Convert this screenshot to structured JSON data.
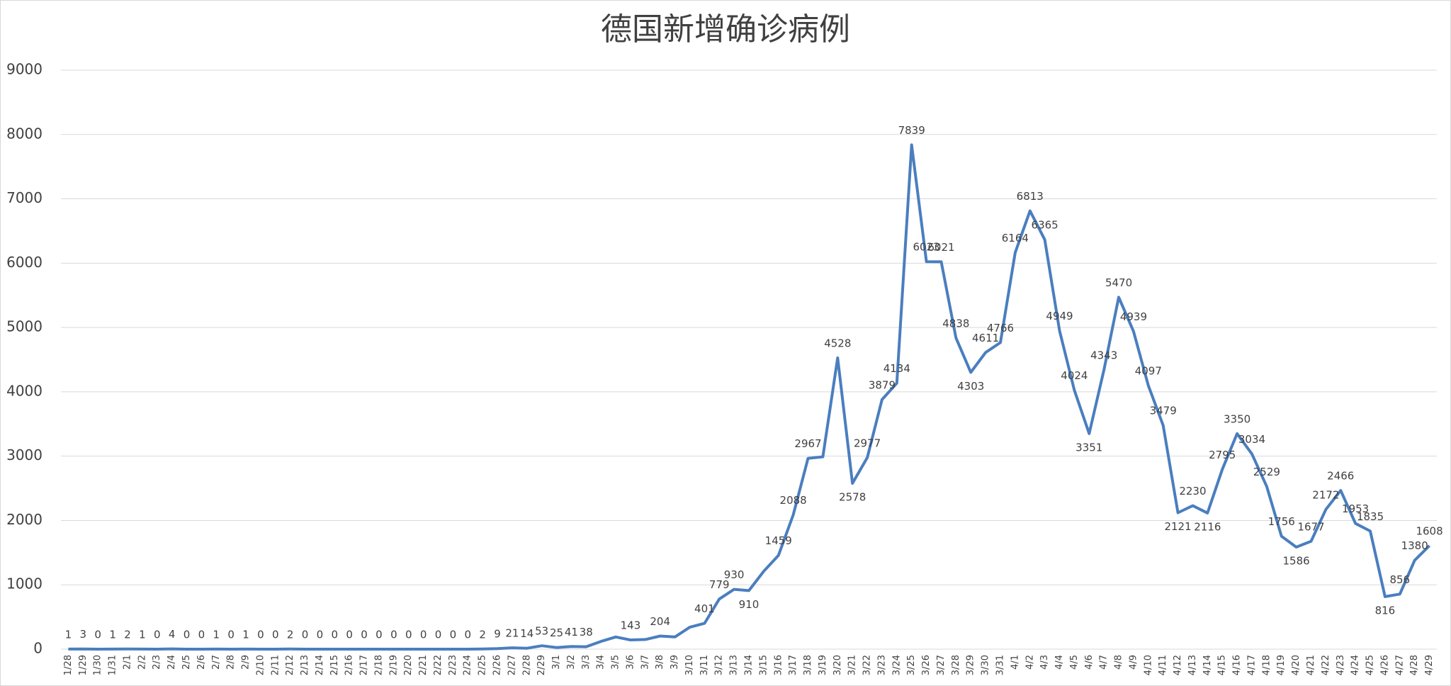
{
  "chart_data": {
    "type": "line",
    "title": "德国新增确诊病例",
    "categories": [
      "1/28",
      "1/29",
      "1/30",
      "1/31",
      "2/1",
      "2/2",
      "2/3",
      "2/4",
      "2/5",
      "2/6",
      "2/7",
      "2/8",
      "2/9",
      "2/10",
      "2/11",
      "2/12",
      "2/13",
      "2/14",
      "2/15",
      "2/16",
      "2/17",
      "2/18",
      "2/19",
      "2/20",
      "2/21",
      "2/22",
      "2/23",
      "2/24",
      "2/25",
      "2/26",
      "2/27",
      "2/28",
      "2/29",
      "3/1",
      "3/2",
      "3/3",
      "3/4",
      "3/5",
      "3/6",
      "3/7",
      "3/8",
      "3/9",
      "3/10",
      "3/11",
      "3/12",
      "3/13",
      "3/14",
      "3/15",
      "3/16",
      "3/17",
      "3/18",
      "3/19",
      "3/20",
      "3/21",
      "3/22",
      "3/23",
      "3/24",
      "3/25",
      "3/26",
      "3/27",
      "3/28",
      "3/29",
      "3/30",
      "3/31",
      "4/1",
      "4/2",
      "4/3",
      "4/4",
      "4/5",
      "4/6",
      "4/7",
      "4/8",
      "4/9",
      "4/10",
      "4/11",
      "4/12",
      "4/13",
      "4/14",
      "4/15",
      "4/16",
      "4/17",
      "4/18",
      "4/19",
      "4/20",
      "4/21",
      "4/22",
      "4/23",
      "4/24",
      "4/25",
      "4/26",
      "4/27",
      "4/28",
      "4/29"
    ],
    "values": [
      1,
      3,
      0,
      1,
      2,
      1,
      0,
      4,
      0,
      0,
      1,
      0,
      1,
      0,
      0,
      2,
      0,
      0,
      0,
      0,
      0,
      0,
      0,
      0,
      0,
      0,
      0,
      0,
      2,
      9,
      21,
      14,
      53,
      25,
      41,
      38,
      120,
      190,
      143,
      150,
      204,
      190,
      340,
      401,
      779,
      930,
      910,
      1210,
      1459,
      2088,
      2967,
      2990,
      4528,
      2578,
      2977,
      3879,
      4134,
      7839,
      6023,
      6021,
      4838,
      4303,
      4611,
      4766,
      6164,
      6813,
      6365,
      4949,
      4024,
      3351,
      4343,
      5470,
      4939,
      4097,
      3479,
      2121,
      2230,
      2116,
      2795,
      3350,
      3034,
      2529,
      1756,
      1586,
      1677,
      2172,
      2466,
      1953,
      1835,
      816,
      856,
      1380,
      1608
    ],
    "value_labels": [
      "1",
      "3",
      "0",
      "1",
      "2",
      "1",
      "0",
      "4",
      "0",
      "0",
      "1",
      "0",
      "1",
      "0",
      "0",
      "2",
      "0",
      "0",
      "0",
      "0",
      "0",
      "0",
      "0",
      "0",
      "0",
      "0",
      "0",
      "0",
      "2",
      "9",
      "21",
      "14",
      "53",
      "25",
      "41",
      "38",
      null,
      null,
      "143",
      null,
      "204",
      null,
      null,
      "401",
      "779",
      "930",
      "910",
      null,
      "1459",
      "2088",
      "2967",
      null,
      "4528",
      "2578",
      "2977",
      "3879",
      "4134",
      "7839",
      "6023",
      "6021",
      "4838",
      "4303",
      "4611",
      "4766",
      "6164",
      "6813",
      "6365",
      "4949",
      "4024",
      "3351",
      "4343",
      "5470",
      "4939",
      "4097",
      "3479",
      "2121",
      "2230",
      "2116",
      "2795",
      "3350",
      "3034",
      "2529",
      "1756",
      "1586",
      "1677",
      "2172",
      "2466",
      "1953",
      "1835",
      "816",
      "856",
      "1380",
      "1608"
    ],
    "color": "#4a7ebf",
    "ylim": [
      0,
      9000
    ],
    "yticks": [
      0,
      1000,
      2000,
      3000,
      4000,
      5000,
      6000,
      7000,
      8000,
      9000
    ],
    "grid": true
  }
}
